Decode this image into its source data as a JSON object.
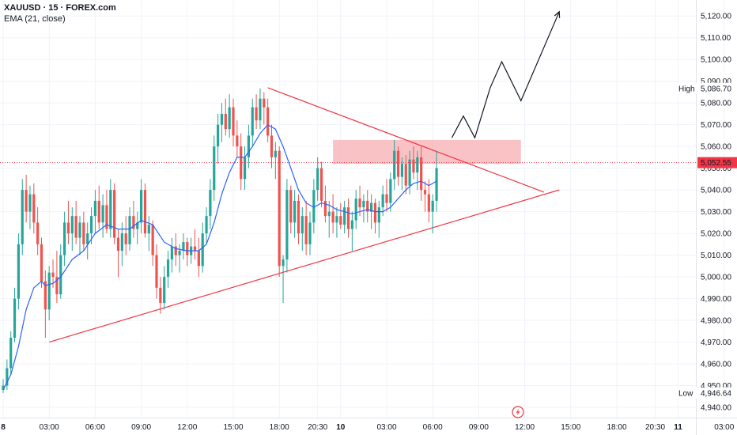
{
  "header": {
    "symbol_line": "XAUUSD · 15 · FOREX.com",
    "indicator_line": "EMA (21, close)"
  },
  "colors": {
    "up": "#26a69a",
    "down": "#ef5350",
    "ema": "#2962ff",
    "trendline": "#f23645",
    "zone": "#f7a9ae",
    "projection": "#131722",
    "price_label_bg": "#f23645"
  },
  "chart_data": {
    "type": "candlestick",
    "symbol": "XAUUSD",
    "timeframe": "15",
    "source": "FOREX.com",
    "indicator": "EMA (21, close)",
    "y_ticks": [
      4940,
      4950,
      4960,
      4970,
      4980,
      4990,
      5000,
      5010,
      5020,
      5030,
      5040,
      5050,
      5060,
      5070,
      5080,
      5090,
      5100,
      5110,
      5120
    ],
    "y_tick_labels": [
      "4,940.00",
      "4,950.00",
      "4,960.00",
      "4,970.00",
      "4,980.00",
      "4,990.00",
      "5,000.00",
      "5,010.00",
      "5,020.00",
      "5,030.00",
      "5,040.00",
      "5,050.00",
      "5,060.00",
      "5,070.00",
      "5,080.00",
      "5,090.00",
      "5,100.00",
      "5,110.00",
      "5,120.00"
    ],
    "ylim": [
      4936,
      5127
    ],
    "x_ticks": [
      {
        "label": "8",
        "bold": true,
        "bar": 0
      },
      {
        "label": "03:00",
        "bold": false,
        "bar": 12
      },
      {
        "label": "06:00",
        "bold": false,
        "bar": 24
      },
      {
        "label": "09:00",
        "bold": false,
        "bar": 36
      },
      {
        "label": "12:00",
        "bold": false,
        "bar": 48
      },
      {
        "label": "15:00",
        "bold": false,
        "bar": 60
      },
      {
        "label": "18:00",
        "bold": false,
        "bar": 72
      },
      {
        "label": "20:30",
        "bold": false,
        "bar": 82
      },
      {
        "label": "10",
        "bold": true,
        "bar": 88
      },
      {
        "label": "03:00",
        "bold": false,
        "bar": 100
      },
      {
        "label": "06:00",
        "bold": false,
        "bar": 112
      },
      {
        "label": "09:00",
        "bold": false,
        "bar": 124
      },
      {
        "label": "12:00",
        "bold": false,
        "bar": 136
      },
      {
        "label": "15:00",
        "bold": false,
        "bar": 148
      },
      {
        "label": "18:00",
        "bold": false,
        "bar": 160
      },
      {
        "label": "20:30",
        "bold": false,
        "bar": 170
      },
      {
        "label": "11",
        "bold": true,
        "bar": 176
      },
      {
        "label": "03:00",
        "bold": false,
        "bar": 188
      }
    ],
    "current_price": 5052.55,
    "current_price_label": "5,052.55",
    "high": {
      "label": "High",
      "value": 5086.7,
      "value_label": "5,086.70"
    },
    "low": {
      "label": "Low",
      "value": 4946.64,
      "value_label": "4,946.64"
    },
    "candles": [
      {
        "t": 0,
        "o": 4948,
        "h": 4953,
        "l": 4946.6,
        "c": 4950
      },
      {
        "t": 1,
        "o": 4950,
        "h": 4962,
        "l": 4948,
        "c": 4958
      },
      {
        "t": 2,
        "o": 4958,
        "h": 4975,
        "l": 4955,
        "c": 4972
      },
      {
        "t": 3,
        "o": 4972,
        "h": 4995,
        "l": 4970,
        "c": 4990
      },
      {
        "t": 4,
        "o": 4990,
        "h": 5020,
        "l": 4985,
        "c": 5015
      },
      {
        "t": 5,
        "o": 5015,
        "h": 5045,
        "l": 5010,
        "c": 5040
      },
      {
        "t": 6,
        "o": 5040,
        "h": 5047,
        "l": 5025,
        "c": 5030
      },
      {
        "t": 7,
        "o": 5030,
        "h": 5042,
        "l": 5022,
        "c": 5038
      },
      {
        "t": 8,
        "o": 5038,
        "h": 5043,
        "l": 5020,
        "c": 5025
      },
      {
        "t": 9,
        "o": 5025,
        "h": 5032,
        "l": 5010,
        "c": 5015
      },
      {
        "t": 10,
        "o": 5015,
        "h": 5018,
        "l": 4995,
        "c": 4998
      },
      {
        "t": 11,
        "o": 4998,
        "h": 5003,
        "l": 4972,
        "c": 4985
      },
      {
        "t": 12,
        "o": 4985,
        "h": 5005,
        "l": 4980,
        "c": 5002
      },
      {
        "t": 13,
        "o": 5002,
        "h": 5008,
        "l": 4995,
        "c": 5000
      },
      {
        "t": 14,
        "o": 5000,
        "h": 5012,
        "l": 4988,
        "c": 4992
      },
      {
        "t": 15,
        "o": 4992,
        "h": 5015,
        "l": 4990,
        "c": 5010
      },
      {
        "t": 16,
        "o": 5010,
        "h": 5030,
        "l": 5005,
        "c": 5025
      },
      {
        "t": 17,
        "o": 5025,
        "h": 5035,
        "l": 5015,
        "c": 5020
      },
      {
        "t": 18,
        "o": 5020,
        "h": 5032,
        "l": 5012,
        "c": 5028
      },
      {
        "t": 19,
        "o": 5028,
        "h": 5035,
        "l": 5015,
        "c": 5018
      },
      {
        "t": 20,
        "o": 5018,
        "h": 5028,
        "l": 5010,
        "c": 5025
      },
      {
        "t": 21,
        "o": 5025,
        "h": 5030,
        "l": 5012,
        "c": 5015
      },
      {
        "t": 22,
        "o": 5015,
        "h": 5025,
        "l": 5008,
        "c": 5020
      },
      {
        "t": 23,
        "o": 5020,
        "h": 5032,
        "l": 5015,
        "c": 5028
      },
      {
        "t": 24,
        "o": 5028,
        "h": 5040,
        "l": 5020,
        "c": 5035
      },
      {
        "t": 25,
        "o": 5035,
        "h": 5042,
        "l": 5022,
        "c": 5025
      },
      {
        "t": 26,
        "o": 5025,
        "h": 5038,
        "l": 5018,
        "c": 5033
      },
      {
        "t": 27,
        "o": 5033,
        "h": 5040,
        "l": 5020,
        "c": 5022
      },
      {
        "t": 28,
        "o": 5022,
        "h": 5045,
        "l": 5018,
        "c": 5040
      },
      {
        "t": 29,
        "o": 5040,
        "h": 5043,
        "l": 5015,
        "c": 5018
      },
      {
        "t": 30,
        "o": 5018,
        "h": 5022,
        "l": 5000,
        "c": 5012
      },
      {
        "t": 31,
        "o": 5012,
        "h": 5025,
        "l": 5005,
        "c": 5020
      },
      {
        "t": 32,
        "o": 5020,
        "h": 5028,
        "l": 5010,
        "c": 5015
      },
      {
        "t": 33,
        "o": 5015,
        "h": 5032,
        "l": 5012,
        "c": 5028
      },
      {
        "t": 34,
        "o": 5028,
        "h": 5035,
        "l": 5018,
        "c": 5022
      },
      {
        "t": 35,
        "o": 5022,
        "h": 5030,
        "l": 5015,
        "c": 5025
      },
      {
        "t": 36,
        "o": 5025,
        "h": 5045,
        "l": 5020,
        "c": 5040
      },
      {
        "t": 37,
        "o": 5040,
        "h": 5043,
        "l": 5018,
        "c": 5020
      },
      {
        "t": 38,
        "o": 5020,
        "h": 5028,
        "l": 5012,
        "c": 5024
      },
      {
        "t": 39,
        "o": 5024,
        "h": 5026,
        "l": 5005,
        "c": 5010
      },
      {
        "t": 40,
        "o": 5010,
        "h": 5015,
        "l": 4990,
        "c": 4995
      },
      {
        "t": 41,
        "o": 4995,
        "h": 5000,
        "l": 4983,
        "c": 4988
      },
      {
        "t": 42,
        "o": 4988,
        "h": 5005,
        "l": 4985,
        "c": 5000
      },
      {
        "t": 43,
        "o": 5000,
        "h": 5012,
        "l": 4995,
        "c": 5008
      },
      {
        "t": 44,
        "o": 5008,
        "h": 5018,
        "l": 5002,
        "c": 5014
      },
      {
        "t": 45,
        "o": 5014,
        "h": 5020,
        "l": 5005,
        "c": 5010
      },
      {
        "t": 46,
        "o": 5010,
        "h": 5015,
        "l": 5002,
        "c": 5012
      },
      {
        "t": 47,
        "o": 5012,
        "h": 5020,
        "l": 5008,
        "c": 5016
      },
      {
        "t": 48,
        "o": 5016,
        "h": 5018,
        "l": 5005,
        "c": 5010
      },
      {
        "t": 49,
        "o": 5010,
        "h": 5018,
        "l": 5006,
        "c": 5014
      },
      {
        "t": 50,
        "o": 5014,
        "h": 5022,
        "l": 5008,
        "c": 5012
      },
      {
        "t": 51,
        "o": 5012,
        "h": 5018,
        "l": 5000,
        "c": 5005
      },
      {
        "t": 52,
        "o": 5005,
        "h": 5025,
        "l": 5002,
        "c": 5020
      },
      {
        "t": 53,
        "o": 5020,
        "h": 5032,
        "l": 5015,
        "c": 5028
      },
      {
        "t": 54,
        "o": 5028,
        "h": 5045,
        "l": 5022,
        "c": 5040
      },
      {
        "t": 55,
        "o": 5040,
        "h": 5065,
        "l": 5035,
        "c": 5060
      },
      {
        "t": 56,
        "o": 5060,
        "h": 5075,
        "l": 5052,
        "c": 5070
      },
      {
        "t": 57,
        "o": 5070,
        "h": 5080,
        "l": 5062,
        "c": 5075
      },
      {
        "t": 58,
        "o": 5075,
        "h": 5082,
        "l": 5065,
        "c": 5068
      },
      {
        "t": 59,
        "o": 5068,
        "h": 5084,
        "l": 5064,
        "c": 5078
      },
      {
        "t": 60,
        "o": 5078,
        "h": 5082,
        "l": 5060,
        "c": 5065
      },
      {
        "t": 61,
        "o": 5065,
        "h": 5072,
        "l": 5055,
        "c": 5060
      },
      {
        "t": 62,
        "o": 5060,
        "h": 5066,
        "l": 5040,
        "c": 5045
      },
      {
        "t": 63,
        "o": 5045,
        "h": 5060,
        "l": 5040,
        "c": 5055
      },
      {
        "t": 64,
        "o": 5055,
        "h": 5070,
        "l": 5050,
        "c": 5065
      },
      {
        "t": 65,
        "o": 5065,
        "h": 5082,
        "l": 5060,
        "c": 5078
      },
      {
        "t": 66,
        "o": 5078,
        "h": 5084,
        "l": 5068,
        "c": 5072
      },
      {
        "t": 67,
        "o": 5072,
        "h": 5086.7,
        "l": 5068,
        "c": 5082
      },
      {
        "t": 68,
        "o": 5082,
        "h": 5085,
        "l": 5070,
        "c": 5078
      },
      {
        "t": 69,
        "o": 5078,
        "h": 5082,
        "l": 5062,
        "c": 5065
      },
      {
        "t": 70,
        "o": 5065,
        "h": 5070,
        "l": 5050,
        "c": 5055
      },
      {
        "t": 71,
        "o": 5055,
        "h": 5062,
        "l": 5045,
        "c": 5058
      },
      {
        "t": 72,
        "o": 5058,
        "h": 5060,
        "l": 5000,
        "c": 5005
      },
      {
        "t": 73,
        "o": 5005,
        "h": 5010,
        "l": 4988,
        "c": 5008
      },
      {
        "t": 74,
        "o": 5008,
        "h": 5045,
        "l": 5002,
        "c": 5040
      },
      {
        "t": 75,
        "o": 5040,
        "h": 5042,
        "l": 5020,
        "c": 5025
      },
      {
        "t": 76,
        "o": 5025,
        "h": 5040,
        "l": 5018,
        "c": 5035
      },
      {
        "t": 77,
        "o": 5035,
        "h": 5038,
        "l": 5015,
        "c": 5020
      },
      {
        "t": 78,
        "o": 5020,
        "h": 5032,
        "l": 5012,
        "c": 5028
      },
      {
        "t": 79,
        "o": 5028,
        "h": 5035,
        "l": 5010,
        "c": 5015
      },
      {
        "t": 80,
        "o": 5015,
        "h": 5030,
        "l": 5010,
        "c": 5025
      },
      {
        "t": 81,
        "o": 5025,
        "h": 5045,
        "l": 5020,
        "c": 5040
      },
      {
        "t": 82,
        "o": 5040,
        "h": 5055,
        "l": 5035,
        "c": 5050
      },
      {
        "t": 83,
        "o": 5050,
        "h": 5053,
        "l": 5032,
        "c": 5035
      },
      {
        "t": 84,
        "o": 5035,
        "h": 5042,
        "l": 5025,
        "c": 5028
      },
      {
        "t": 85,
        "o": 5028,
        "h": 5035,
        "l": 5018,
        "c": 5030
      },
      {
        "t": 86,
        "o": 5030,
        "h": 5038,
        "l": 5020,
        "c": 5025
      },
      {
        "t": 87,
        "o": 5025,
        "h": 5032,
        "l": 5018,
        "c": 5028
      },
      {
        "t": 88,
        "o": 5028,
        "h": 5034,
        "l": 5022,
        "c": 5024
      },
      {
        "t": 89,
        "o": 5024,
        "h": 5035,
        "l": 5020,
        "c": 5032
      },
      {
        "t": 90,
        "o": 5032,
        "h": 5036,
        "l": 5018,
        "c": 5022
      },
      {
        "t": 91,
        "o": 5022,
        "h": 5030,
        "l": 5012,
        "c": 5026
      },
      {
        "t": 92,
        "o": 5026,
        "h": 5040,
        "l": 5022,
        "c": 5036
      },
      {
        "t": 93,
        "o": 5036,
        "h": 5042,
        "l": 5028,
        "c": 5032
      },
      {
        "t": 94,
        "o": 5032,
        "h": 5038,
        "l": 5025,
        "c": 5035
      },
      {
        "t": 95,
        "o": 5035,
        "h": 5040,
        "l": 5025,
        "c": 5030
      },
      {
        "t": 96,
        "o": 5030,
        "h": 5038,
        "l": 5022,
        "c": 5034
      },
      {
        "t": 97,
        "o": 5034,
        "h": 5036,
        "l": 5020,
        "c": 5025
      },
      {
        "t": 98,
        "o": 5025,
        "h": 5035,
        "l": 5018,
        "c": 5032
      },
      {
        "t": 99,
        "o": 5032,
        "h": 5042,
        "l": 5028,
        "c": 5038
      },
      {
        "t": 100,
        "o": 5038,
        "h": 5045,
        "l": 5030,
        "c": 5034
      },
      {
        "t": 101,
        "o": 5034,
        "h": 5048,
        "l": 5030,
        "c": 5045
      },
      {
        "t": 102,
        "o": 5045,
        "h": 5063,
        "l": 5040,
        "c": 5058
      },
      {
        "t": 103,
        "o": 5058,
        "h": 5060,
        "l": 5042,
        "c": 5046
      },
      {
        "t": 104,
        "o": 5046,
        "h": 5055,
        "l": 5040,
        "c": 5052
      },
      {
        "t": 105,
        "o": 5052,
        "h": 5056,
        "l": 5038,
        "c": 5042
      },
      {
        "t": 106,
        "o": 5042,
        "h": 5058,
        "l": 5038,
        "c": 5054
      },
      {
        "t": 107,
        "o": 5054,
        "h": 5060,
        "l": 5045,
        "c": 5048
      },
      {
        "t": 108,
        "o": 5048,
        "h": 5058,
        "l": 5040,
        "c": 5055
      },
      {
        "t": 109,
        "o": 5055,
        "h": 5060,
        "l": 5035,
        "c": 5040
      },
      {
        "t": 110,
        "o": 5040,
        "h": 5044,
        "l": 5030,
        "c": 5038
      },
      {
        "t": 111,
        "o": 5038,
        "h": 5045,
        "l": 5025,
        "c": 5030
      },
      {
        "t": 112,
        "o": 5030,
        "h": 5038,
        "l": 5020,
        "c": 5035
      },
      {
        "t": 113,
        "o": 5035,
        "h": 5058,
        "l": 5030,
        "c": 5050
      }
    ],
    "ema": [
      [
        0,
        4948
      ],
      [
        2,
        4955
      ],
      [
        4,
        4968
      ],
      [
        6,
        4985
      ],
      [
        8,
        4995
      ],
      [
        10,
        4998
      ],
      [
        11,
        4996
      ],
      [
        13,
        4997
      ],
      [
        15,
        5000
      ],
      [
        18,
        5008
      ],
      [
        21,
        5012
      ],
      [
        24,
        5020
      ],
      [
        27,
        5024
      ],
      [
        30,
        5022
      ],
      [
        33,
        5022
      ],
      [
        36,
        5026
      ],
      [
        39,
        5024
      ],
      [
        42,
        5016
      ],
      [
        45,
        5013
      ],
      [
        48,
        5012
      ],
      [
        51,
        5012
      ],
      [
        53,
        5015
      ],
      [
        55,
        5025
      ],
      [
        57,
        5038
      ],
      [
        59,
        5048
      ],
      [
        61,
        5055
      ],
      [
        63,
        5055
      ],
      [
        65,
        5060
      ],
      [
        67,
        5066
      ],
      [
        69,
        5070
      ],
      [
        71,
        5068
      ],
      [
        73,
        5060
      ],
      [
        75,
        5050
      ],
      [
        77,
        5040
      ],
      [
        79,
        5034
      ],
      [
        81,
        5032
      ],
      [
        83,
        5034
      ],
      [
        85,
        5033
      ],
      [
        87,
        5031
      ],
      [
        89,
        5030
      ],
      [
        91,
        5029
      ],
      [
        93,
        5030
      ],
      [
        95,
        5031
      ],
      [
        97,
        5030
      ],
      [
        99,
        5030
      ],
      [
        101,
        5032
      ],
      [
        103,
        5036
      ],
      [
        105,
        5040
      ],
      [
        107,
        5043
      ],
      [
        109,
        5044
      ],
      [
        111,
        5042
      ],
      [
        113,
        5044
      ]
    ],
    "resistance_zone": {
      "from_bar": 86,
      "to_bar": 135,
      "low": 5052,
      "high": 5063
    },
    "trendlines": [
      {
        "name": "upper",
        "from": {
          "bar": 69,
          "price": 5087
        },
        "to": {
          "bar": 141,
          "price": 5039
        }
      },
      {
        "name": "lower",
        "from": {
          "bar": 12,
          "price": 4970
        },
        "to": {
          "bar": 145,
          "price": 5040
        }
      }
    ],
    "projection": [
      {
        "bar": 117,
        "price": 5064
      },
      {
        "bar": 120,
        "price": 5074
      },
      {
        "bar": 123,
        "price": 5064
      },
      {
        "bar": 127,
        "price": 5087
      },
      {
        "bar": 130,
        "price": 5099
      },
      {
        "bar": 135,
        "price": 5081
      },
      {
        "bar": 145,
        "price": 5122
      }
    ]
  }
}
